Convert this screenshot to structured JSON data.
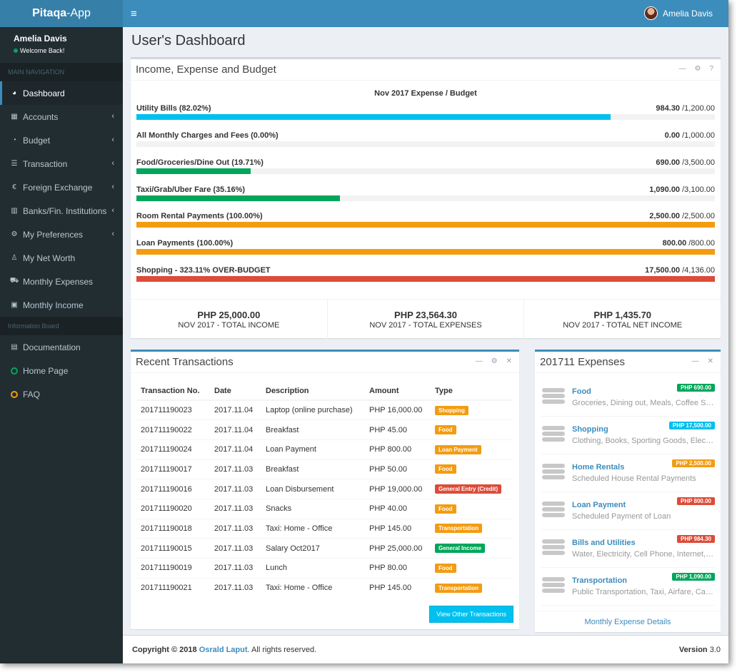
{
  "app": {
    "logo_bold": "Pitaqa",
    "logo_rest": "-App"
  },
  "user": {
    "name": "Amelia Davis",
    "status": "Welcome Back!"
  },
  "sidebar": {
    "main_header": "MAIN NAVIGATION",
    "items": [
      {
        "label": "Dashboard",
        "icon": "dashboard-icon",
        "glyph": "◕",
        "arrow": false,
        "active": true
      },
      {
        "label": "Accounts",
        "icon": "grid-icon",
        "glyph": "▦",
        "arrow": true
      },
      {
        "label": "Budget",
        "icon": "pie-chart-icon",
        "glyph": "◔",
        "arrow": true
      },
      {
        "label": "Transaction",
        "icon": "list-icon",
        "glyph": "☰",
        "arrow": true
      },
      {
        "label": "Foreign Exchange",
        "icon": "euro-icon",
        "glyph": "€",
        "arrow": true
      },
      {
        "label": "Banks/Fin. Institutions",
        "icon": "building-icon",
        "glyph": "▥",
        "arrow": true
      },
      {
        "label": "My Preferences",
        "icon": "cogs-icon",
        "glyph": "⚙",
        "arrow": true
      },
      {
        "label": "My Net Worth",
        "icon": "user-icon",
        "glyph": "♙",
        "arrow": false
      },
      {
        "label": "Monthly Expenses",
        "icon": "cart-icon",
        "glyph": "⛟",
        "arrow": false
      },
      {
        "label": "Monthly Income",
        "icon": "money-icon",
        "glyph": "▣",
        "arrow": false
      }
    ],
    "info_header": "Information Board",
    "info_items": [
      {
        "label": "Documentation",
        "icon": "book-icon",
        "glyph": "▤",
        "color": "#b8c7ce"
      },
      {
        "label": "Home Page",
        "icon": "circle-green-icon",
        "color": "#00a65a"
      },
      {
        "label": "FAQ",
        "icon": "circle-yellow-icon",
        "color": "#f39c12"
      }
    ]
  },
  "topbar": {
    "menu_glyph": "≡",
    "user_name": "Amelia Davis"
  },
  "page": {
    "title": "User's Dashboard"
  },
  "budget": {
    "header": "Income, Expense and Budget",
    "title": "Nov 2017 Expense / Budget",
    "rows": [
      {
        "label": "Utility Bills (82.02%)",
        "amount": "984.30",
        "budget": " /1,200.00",
        "pct": 82.02,
        "color": "#00c0ef"
      },
      {
        "label": "All Monthly Charges and Fees (0.00%)",
        "amount": "0.00",
        "budget": " /1,000.00",
        "pct": 0,
        "color": "#00c0ef"
      },
      {
        "label": "Food/Groceries/Dine Out (19.71%)",
        "amount": "690.00",
        "budget": " /3,500.00",
        "pct": 19.71,
        "color": "#00a65a"
      },
      {
        "label": "Taxi/Grab/Uber Fare (35.16%)",
        "amount": "1,090.00",
        "budget": " /3,100.00",
        "pct": 35.16,
        "color": "#00a65a"
      },
      {
        "label": "Room Rental Payments (100.00%)",
        "amount": "2,500.00",
        "budget": " /2,500.00",
        "pct": 100,
        "color": "#f39c12"
      },
      {
        "label": "Loan Payments (100.00%)",
        "amount": "800.00",
        "budget": " /800.00",
        "pct": 100,
        "color": "#f39c12"
      },
      {
        "label": "Shopping - 323.11% OVER-BUDGET",
        "amount": "17,500.00",
        "budget": " /4,136.00",
        "pct": 100,
        "color": "#dd4b39"
      }
    ],
    "totals": [
      {
        "value": "PHP 25,000.00",
        "label": "NOV 2017 - TOTAL INCOME"
      },
      {
        "value": "PHP 23,564.30",
        "label": "NOV 2017 - TOTAL EXPENSES"
      },
      {
        "value": "PHP 1,435.70",
        "label": "NOV 2017 - TOTAL NET INCOME"
      }
    ]
  },
  "transactions": {
    "header": "Recent Transactions",
    "columns": [
      "Transaction No.",
      "Date",
      "Description",
      "Amount",
      "Type"
    ],
    "rows": [
      {
        "no": "201711190023",
        "date": "2017.11.04",
        "desc": "Laptop (online purchase)",
        "amount": "PHP 16,000.00",
        "type": "Shopping",
        "color": "#f39c12"
      },
      {
        "no": "201711190022",
        "date": "2017.11.04",
        "desc": "Breakfast",
        "amount": "PHP 45.00",
        "type": "Food",
        "color": "#f39c12"
      },
      {
        "no": "201711190024",
        "date": "2017.11.04",
        "desc": "Loan Payment",
        "amount": "PHP 800.00",
        "type": "Loan Payment",
        "color": "#f39c12"
      },
      {
        "no": "201711190017",
        "date": "2017.11.03",
        "desc": "Breakfast",
        "amount": "PHP 50.00",
        "type": "Food",
        "color": "#f39c12"
      },
      {
        "no": "201711190016",
        "date": "2017.11.03",
        "desc": "Loan Disbursement",
        "amount": "PHP 19,000.00",
        "type": "General Entry (Credit)",
        "color": "#dd4b39"
      },
      {
        "no": "201711190020",
        "date": "2017.11.03",
        "desc": "Snacks",
        "amount": "PHP 40.00",
        "type": "Food",
        "color": "#f39c12"
      },
      {
        "no": "201711190018",
        "date": "2017.11.03",
        "desc": "Taxi: Home - Office",
        "amount": "PHP 145.00",
        "type": "Transportation",
        "color": "#f39c12"
      },
      {
        "no": "201711190015",
        "date": "2017.11.03",
        "desc": "Salary Oct2017",
        "amount": "PHP 25,000.00",
        "type": "General Income",
        "color": "#00a65a"
      },
      {
        "no": "201711190019",
        "date": "2017.11.03",
        "desc": "Lunch",
        "amount": "PHP 80.00",
        "type": "Food",
        "color": "#f39c12"
      },
      {
        "no": "201711190021",
        "date": "2017.11.03",
        "desc": "Taxi: Home - Office",
        "amount": "PHP 145.00",
        "type": "Transportation",
        "color": "#f39c12"
      }
    ],
    "button": "View Other Transactions"
  },
  "expenses": {
    "header": "201711 Expenses",
    "items": [
      {
        "name": "Food",
        "desc": "Groceries, Dining out, Meals, Coffee Shops",
        "badge": "PHP 690.00",
        "color": "#00a65a"
      },
      {
        "name": "Shopping",
        "desc": "Clothing, Books, Sporting Goods, Electronics",
        "badge": "PHP 17,500.00",
        "color": "#00c0ef"
      },
      {
        "name": "Home Rentals",
        "desc": "Scheduled House Rental Payments",
        "badge": "PHP 2,500.00",
        "color": "#f39c12"
      },
      {
        "name": "Loan Payment",
        "desc": "Scheduled Payment of Loan",
        "badge": "PHP 800.00",
        "color": "#dd4b39"
      },
      {
        "name": "Bills and Utilities",
        "desc": "Water, Electricity, Cell Phone, Internet, Cable",
        "badge": "PHP 984.30",
        "color": "#dd4b39"
      },
      {
        "name": "Transportation",
        "desc": "Public Transportation, Taxi, Airfare, Car Rental",
        "badge": "PHP 1,090.00",
        "color": "#00a65a"
      }
    ],
    "footer": "Monthly Expense Details"
  },
  "footer": {
    "copyright": "Copyright © 2018 ",
    "author": "Osrald Laput",
    "rights": ". All rights reserved.",
    "version_label": "Version",
    "version": "3.0"
  }
}
